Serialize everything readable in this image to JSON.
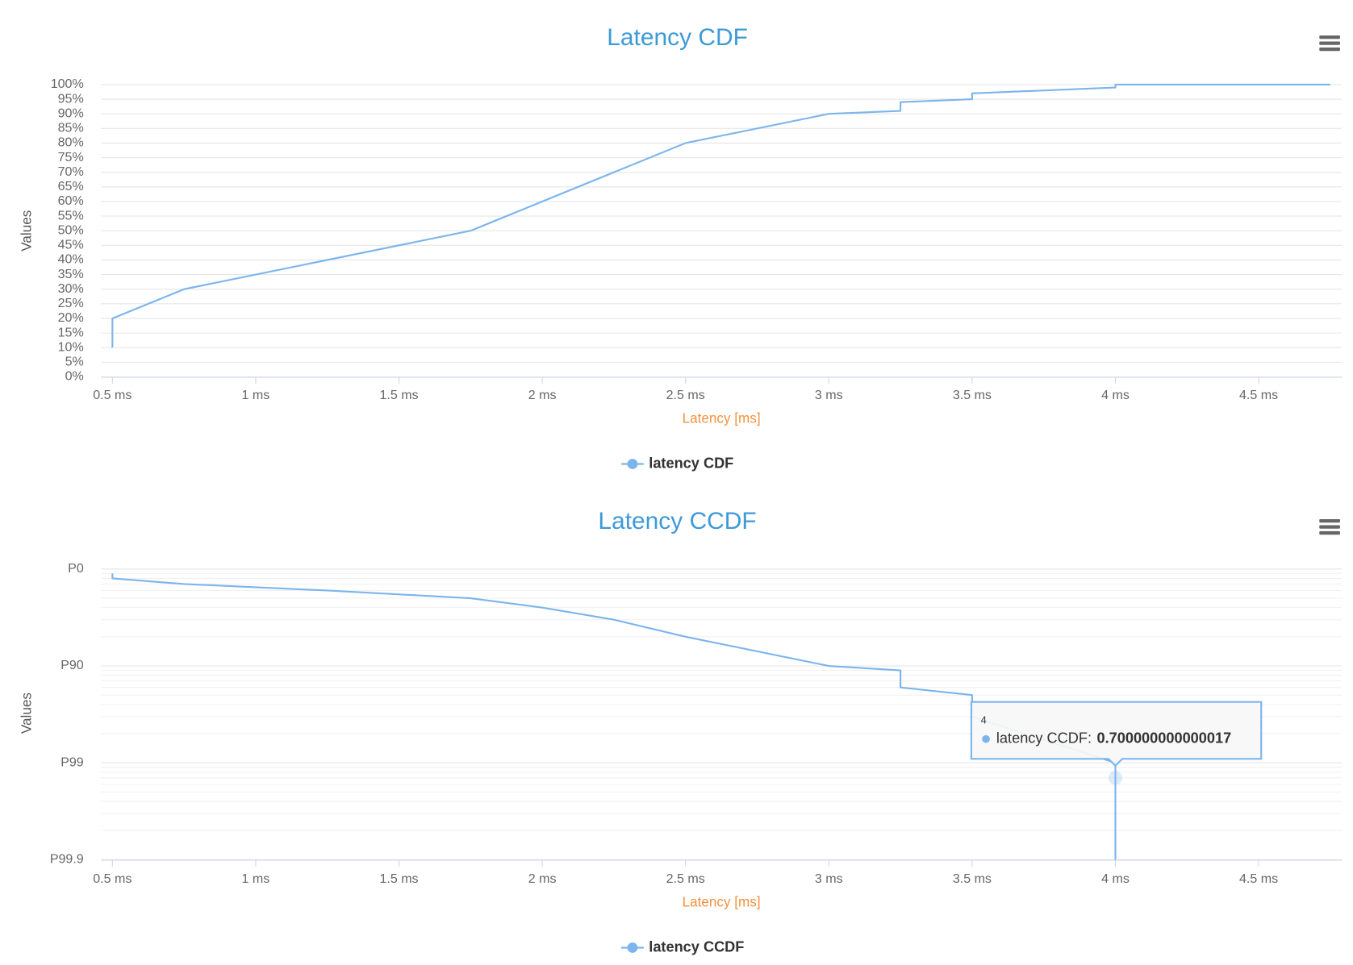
{
  "chart_data": [
    {
      "type": "line",
      "title": "Latency CDF",
      "x_label": "Latency [ms]",
      "y_label": "Values",
      "x": [
        0.5,
        0.5,
        0.75,
        1.75,
        2.5,
        3,
        3.25,
        3.25,
        3.5,
        3.5,
        4,
        4,
        4.75
      ],
      "series": [
        {
          "name": "latency CDF",
          "color": "#7cb5ec",
          "values": [
            10,
            20,
            30,
            50,
            80,
            90,
            91,
            94,
            95,
            97,
            99,
            100,
            100
          ]
        }
      ],
      "xlim": [
        0.46,
        4.79
      ],
      "xticks": [
        {
          "value": 0.5,
          "label": "0.5 ms"
        },
        {
          "value": 1,
          "label": "1 ms"
        },
        {
          "value": 1.5,
          "label": "1.5 ms"
        },
        {
          "value": 2,
          "label": "2 ms"
        },
        {
          "value": 2.5,
          "label": "2.5 ms"
        },
        {
          "value": 3,
          "label": "3 ms"
        },
        {
          "value": 3.5,
          "label": "3.5 ms"
        },
        {
          "value": 4,
          "label": "4 ms"
        },
        {
          "value": 4.5,
          "label": "4.5 ms"
        }
      ],
      "ylim": [
        0,
        100
      ],
      "yticks": [
        {
          "value": 0,
          "label": "0%"
        },
        {
          "value": 5,
          "label": "5%"
        },
        {
          "value": 10,
          "label": "10%"
        },
        {
          "value": 15,
          "label": "15%"
        },
        {
          "value": 20,
          "label": "20%"
        },
        {
          "value": 25,
          "label": "25%"
        },
        {
          "value": 30,
          "label": "30%"
        },
        {
          "value": 35,
          "label": "35%"
        },
        {
          "value": 40,
          "label": "40%"
        },
        {
          "value": 45,
          "label": "45%"
        },
        {
          "value": 50,
          "label": "50%"
        },
        {
          "value": 55,
          "label": "55%"
        },
        {
          "value": 60,
          "label": "60%"
        },
        {
          "value": 65,
          "label": "65%"
        },
        {
          "value": 70,
          "label": "70%"
        },
        {
          "value": 75,
          "label": "75%"
        },
        {
          "value": 80,
          "label": "80%"
        },
        {
          "value": 85,
          "label": "85%"
        },
        {
          "value": 90,
          "label": "90%"
        },
        {
          "value": 95,
          "label": "95%"
        },
        {
          "value": 100,
          "label": "100%"
        }
      ],
      "log_y": false,
      "grid": true,
      "legend": "bottom"
    },
    {
      "type": "line",
      "title": "Latency CCDF",
      "x_label": "Latency [ms]",
      "y_label": "Values",
      "x": [
        0.5,
        0.5,
        0.75,
        1.25,
        1.75,
        2,
        2.25,
        2.5,
        3,
        3.25,
        3.25,
        3.5,
        3.5,
        4,
        4,
        4
      ],
      "series": [
        {
          "name": "latency CCDF",
          "color": "#7cb5ec",
          "values": [
            90,
            80,
            70,
            60,
            50,
            40,
            30,
            20,
            10,
            9,
            6,
            5,
            3,
            1,
            0.700000000000017,
            0.1
          ]
        }
      ],
      "xlim": [
        0.46,
        4.79
      ],
      "xticks": [
        {
          "value": 0.5,
          "label": "0.5 ms"
        },
        {
          "value": 1,
          "label": "1 ms"
        },
        {
          "value": 1.5,
          "label": "1.5 ms"
        },
        {
          "value": 2,
          "label": "2 ms"
        },
        {
          "value": 2.5,
          "label": "2.5 ms"
        },
        {
          "value": 3,
          "label": "3 ms"
        },
        {
          "value": 3.5,
          "label": "3.5 ms"
        },
        {
          "value": 4,
          "label": "4 ms"
        },
        {
          "value": 4.5,
          "label": "4.5 ms"
        }
      ],
      "ylim": [
        0.1,
        106
      ],
      "yticks": [
        {
          "value": 100,
          "label": "P0"
        },
        {
          "value": 10,
          "label": "P90"
        },
        {
          "value": 1,
          "label": "P99"
        },
        {
          "value": 0.1,
          "label": "P99.9"
        }
      ],
      "minor_yticks": [
        0.2,
        0.3,
        0.4,
        0.5,
        0.6,
        0.7,
        0.8,
        0.9,
        2,
        3,
        4,
        5,
        6,
        7,
        8,
        9,
        20,
        30,
        40,
        50,
        60,
        70,
        80,
        90
      ],
      "log_y": true,
      "grid": true,
      "legend": "bottom",
      "tooltip": {
        "label": "latency CCDF:"
      }
    }
  ]
}
